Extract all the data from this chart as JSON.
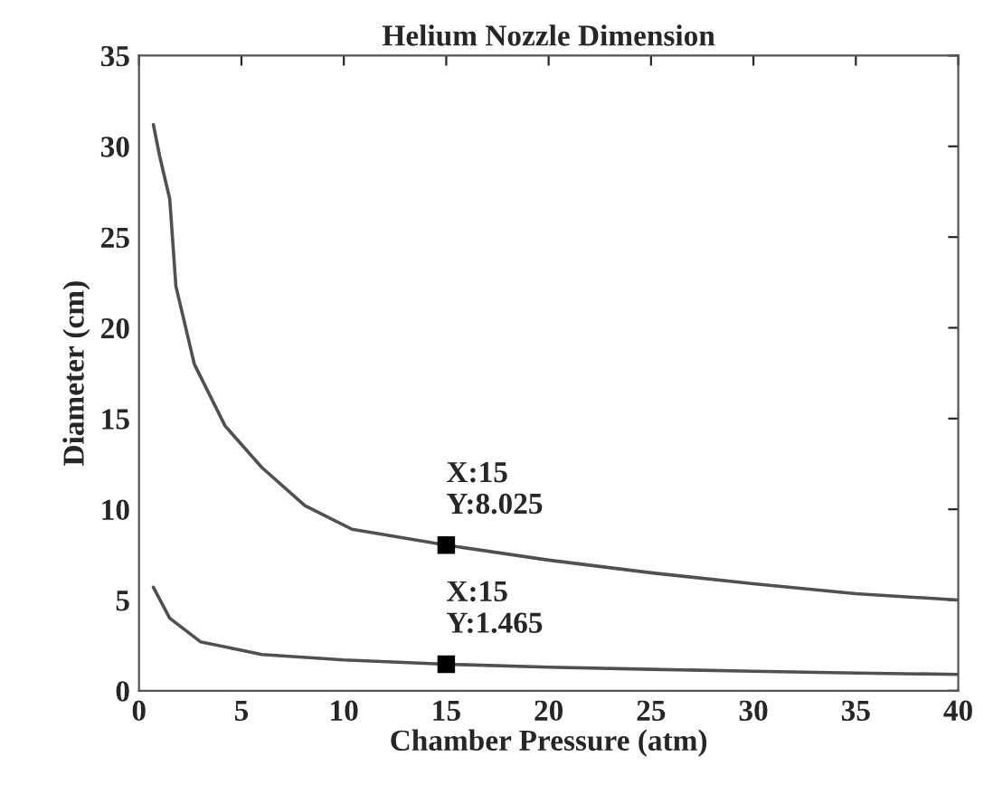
{
  "chart_data": {
    "type": "line",
    "title": "Helium Nozzle Dimension",
    "xlabel": "Chamber Pressure (atm)",
    "ylabel": "Diameter (cm)",
    "series": [
      {
        "color": "#505050",
        "x": [
          0.7,
          1.0,
          1.5,
          1.8,
          2.7,
          4.2,
          6,
          8.1,
          10.4,
          15,
          20,
          25,
          30,
          35,
          40
        ],
        "values": [
          31.2,
          29.5,
          27.1,
          22.3,
          18.0,
          14.6,
          12.3,
          10.2,
          8.9,
          8.025,
          7.2,
          6.5,
          5.9,
          5.35,
          5.0
        ]
      },
      {
        "color": "#505050",
        "x": [
          0.7,
          1.5,
          3,
          6,
          10,
          15,
          20,
          25,
          30,
          35,
          40
        ],
        "values": [
          5.7,
          4.0,
          2.7,
          2.0,
          1.7,
          1.465,
          1.3,
          1.18,
          1.08,
          0.98,
          0.9
        ]
      }
    ],
    "xlim": [
      0,
      40
    ],
    "ylim": [
      0,
      35
    ],
    "xticks": [
      0,
      5,
      10,
      15,
      20,
      25,
      30,
      35,
      40
    ],
    "yticks": [
      0,
      5,
      10,
      15,
      20,
      25,
      30,
      35
    ],
    "annotations": [
      {
        "text": "X:15\nY:8.025",
        "x": 15,
        "y": 8.025
      },
      {
        "text": "X:15\nY:1.465",
        "x": 15,
        "y": 1.465
      }
    ],
    "grid": false,
    "legend": false,
    "marker": "none",
    "line_style": "solid"
  }
}
